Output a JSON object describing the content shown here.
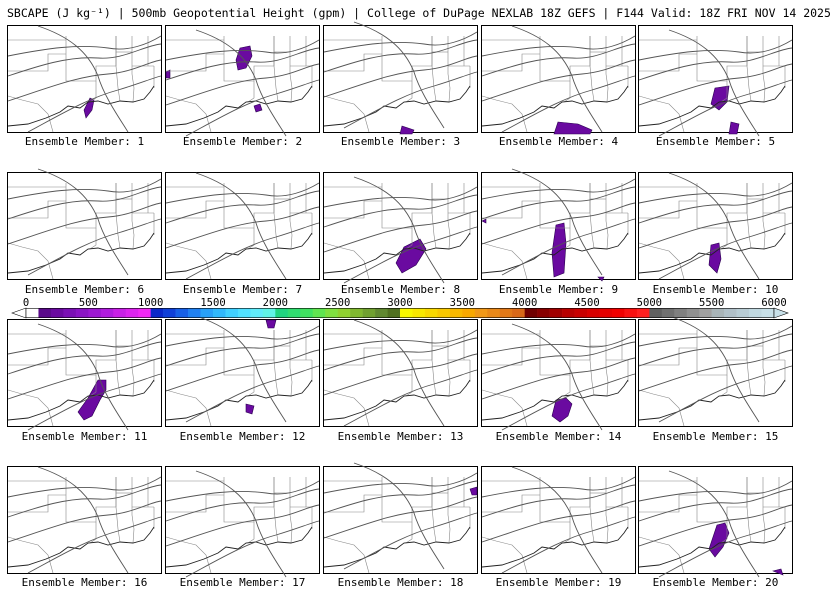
{
  "title": "SBCAPE (J kg⁻¹) | 500mb Geopotential Height (gpm) | College of DuPage NEXLAB 18Z GEFS | F144 Valid: 18Z FRI NOV 14 2025",
  "panel_label_prefix": "Ensemble Member: ",
  "members": [
    1,
    2,
    3,
    4,
    5,
    6,
    7,
    8,
    9,
    10,
    11,
    12,
    13,
    14,
    15,
    16,
    17,
    18,
    19,
    20
  ],
  "colorbar": {
    "labels": [
      "0",
      "500",
      "1000",
      "1500",
      "2000",
      "2500",
      "3000",
      "3500",
      "4000",
      "4500",
      "5000",
      "5500",
      "6000"
    ],
    "colors": [
      "#ffffff",
      "#5a0a8a",
      "#6a0aa0",
      "#7a10b4",
      "#8a14c4",
      "#9c18d2",
      "#b01cde",
      "#c820e6",
      "#dc24ee",
      "#f028f4",
      "#0a28c8",
      "#1040d8",
      "#1860e6",
      "#2080f0",
      "#28a0f8",
      "#30b8fc",
      "#40d0ff",
      "#50e0ff",
      "#60ecfa",
      "#60f4e6",
      "#20d480",
      "#30dc70",
      "#40e060",
      "#60e450",
      "#80e040",
      "#90d030",
      "#80b830",
      "#70a030",
      "#608830",
      "#507020",
      "#f8f800",
      "#f8e800",
      "#f8d800",
      "#f8c800",
      "#f8b800",
      "#f8a800",
      "#f09818",
      "#e88818",
      "#e07818",
      "#d86818",
      "#700000",
      "#880000",
      "#a00000",
      "#b80000",
      "#c80000",
      "#d80000",
      "#e40000",
      "#f00000",
      "#f81010",
      "#ff2020",
      "#606060",
      "#707070",
      "#808080",
      "#909090",
      "#a0a0a0",
      "#a8b4b8",
      "#b0c0c8",
      "#b8ccd4",
      "#c0d8e0",
      "#c8e0e8"
    ]
  }
}
